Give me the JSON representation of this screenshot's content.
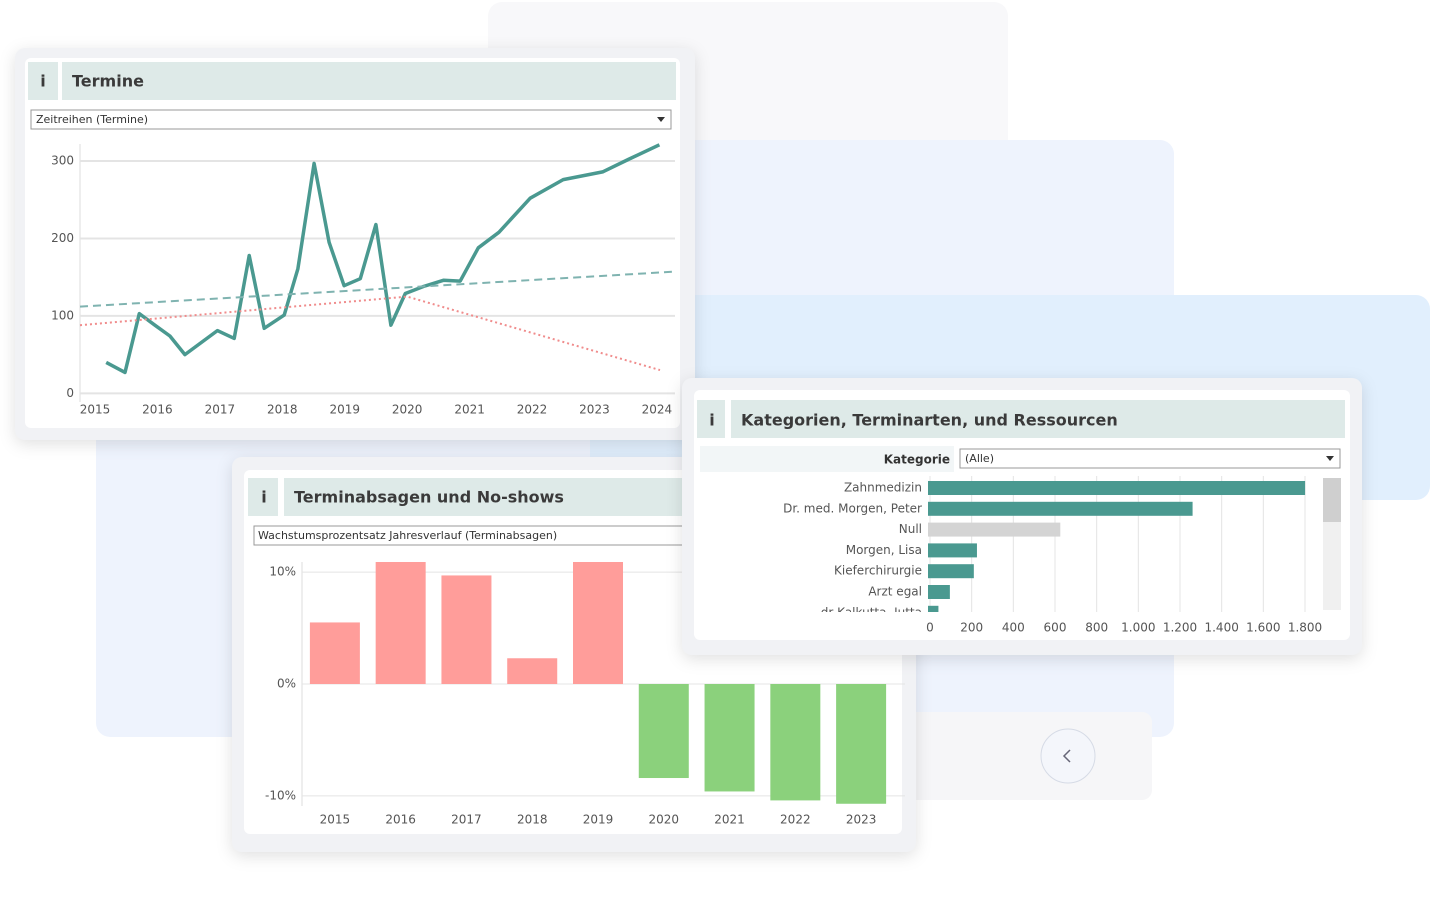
{
  "chart_data": [
    {
      "type": "line",
      "info": "i",
      "title": "Termine",
      "filter": "Zeitreihen (Termine)",
      "xlim": [
        2014.76,
        2024.29
      ],
      "xticks": [
        2015,
        2016,
        2017,
        2018,
        2019,
        2020,
        2021,
        2022,
        2023,
        2024
      ],
      "ylim": [
        -6,
        322
      ],
      "yticks": [
        0,
        100,
        200,
        300
      ],
      "grid": true,
      "series": [
        {
          "color": "#4a9990",
          "line_style": "solid",
          "x": [
            2015.18,
            2015.48,
            2015.71,
            2015.96,
            2016.2,
            2016.44,
            2016.96,
            2017.23,
            2017.47,
            2017.71,
            2018.03,
            2018.25,
            2018.51,
            2018.75,
            2018.99,
            2019.25,
            2019.5,
            2019.74,
            2019.97,
            2020.26,
            2020.58,
            2020.85,
            2021.14,
            2021.47,
            2021.97,
            2022.5,
            2023.13,
            2023.54,
            2024.04
          ],
          "values": [
            40,
            27,
            103,
            88,
            74,
            50,
            81,
            71,
            178,
            84,
            101,
            161,
            297,
            195,
            139,
            148,
            218,
            88,
            129,
            138,
            146,
            145,
            188,
            208,
            252,
            276,
            286,
            302,
            321
          ]
        },
        {
          "color": "#7fb3b0",
          "line_style": "dashed",
          "x": [
            2014.76,
            2024.24
          ],
          "values": [
            112,
            157
          ]
        },
        {
          "color": "#f08c8c",
          "line_style": "dotted",
          "x": [
            2014.76,
            2020.0,
            2024.05
          ],
          "values": [
            88,
            125,
            30
          ]
        }
      ]
    },
    {
      "type": "bar",
      "info": "i",
      "title": "Terminabsagen und No-shows",
      "filter": "Wachstumsprozentsatz Jahresverlauf (Terminabsagen)",
      "categories": [
        "2015",
        "2016",
        "2017",
        "2018",
        "2019",
        "2020",
        "2021",
        "2022",
        "2023"
      ],
      "values": [
        5.5,
        10.9,
        9.7,
        2.3,
        10.9,
        -8.4,
        -9.6,
        -10.4,
        -10.7
      ],
      "positive_color": "#ff9d9a",
      "negative_color": "#8bd17c",
      "ylim": [
        -10.9,
        10.9
      ],
      "yticks": [
        {
          "value": 10,
          "label": "10%"
        },
        {
          "value": 0,
          "label": "0%"
        },
        {
          "value": -10,
          "label": "-10%"
        }
      ],
      "grid": true
    },
    {
      "type": "hbar",
      "info": "i",
      "title": "Kategorien, Terminarten, und Ressourcen",
      "filter_label": "Kategorie",
      "filter": "(Alle)",
      "categories": [
        "Zahnmedizin",
        "Dr. med. Morgen, Peter",
        "Null",
        "Morgen, Lisa",
        "Kieferchirurgie",
        "Arzt egal",
        "dr Kalkutta, Jutta"
      ],
      "values": [
        1810,
        1270,
        635,
        235,
        220,
        105,
        50
      ],
      "colors": [
        "#4a9990",
        "#4a9990",
        "#d4d4d4",
        "#4a9990",
        "#4a9990",
        "#4a9990",
        "#4a9990"
      ],
      "xlim": [
        0,
        1872
      ],
      "xticks": [
        0,
        200,
        400,
        600,
        800,
        {
          "value": 1000,
          "label": "1.000"
        },
        {
          "value": 1200,
          "label": "1.200"
        },
        {
          "value": 1400,
          "label": "1.400"
        },
        {
          "value": 1600,
          "label": "1.600"
        },
        {
          "value": 1800,
          "label": "1.800"
        }
      ],
      "grid": true
    }
  ]
}
